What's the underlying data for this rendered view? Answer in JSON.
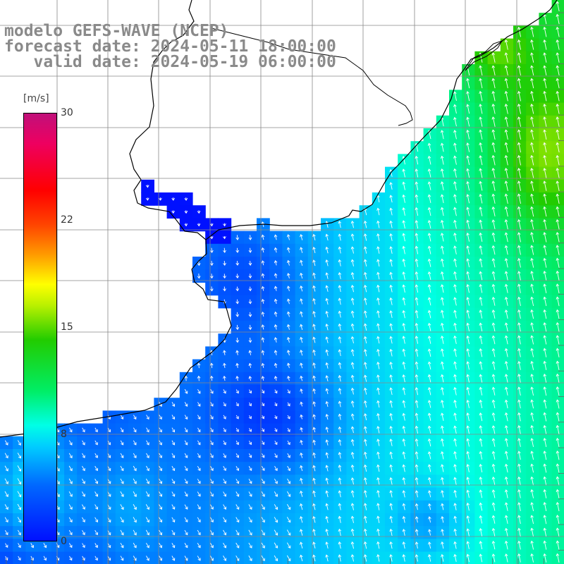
{
  "titles": {
    "model": "modelo GEFS-WAVE (NCEP)",
    "forecast": "forecast date: 2024-05-11 18:00:00",
    "valid": "   valid date: 2024-05-19 06:00:00"
  },
  "colorbar": {
    "unit": "[m/s]",
    "ticks": [
      "30",
      "22",
      "15",
      "8",
      "0"
    ],
    "tick_values": [
      30,
      22,
      15,
      8,
      0
    ],
    "range": [
      0,
      30
    ],
    "colors": [
      "#0010ff",
      "#0068ff",
      "#00ccff",
      "#00ffe6",
      "#00ee66",
      "#22cc00",
      "#b8f000",
      "#ffff00",
      "#ff9a00",
      "#ff4400",
      "#ff0000",
      "#ee0060",
      "#c0107a"
    ]
  },
  "map": {
    "variable": "wind speed and direction",
    "land_color": "#ffffff",
    "coastline_color": "#000000",
    "grid_color": "#808080"
  }
}
